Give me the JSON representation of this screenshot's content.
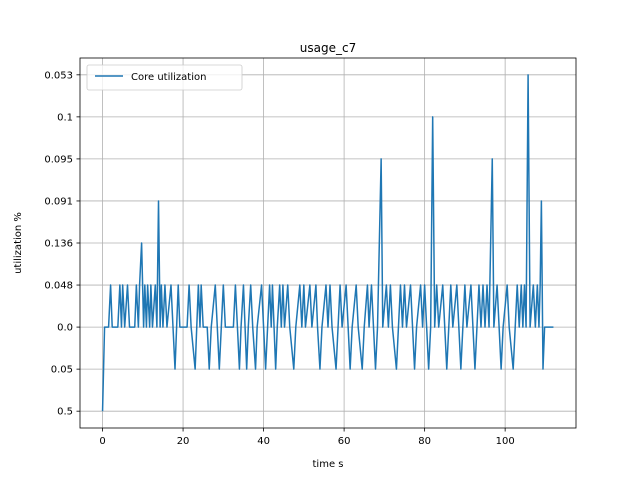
{
  "chart_data": {
    "type": "line",
    "title": "usage_c7",
    "xlabel": "time s",
    "ylabel": "utilization %",
    "xlim": [
      -5.6,
      117.6
    ],
    "x_ticks": [
      0,
      20,
      40,
      60,
      80,
      100
    ],
    "y_categories": [
      "0.5",
      "0.05",
      "0.0",
      "0.048",
      "0.136",
      "0.091",
      "0.095",
      "0.1",
      "0.053"
    ],
    "ylim": [
      -0.4,
      8.4
    ],
    "grid": true,
    "legend_position": "top-left",
    "colors": {
      "series": "#1f77b4",
      "grid": "#b0b0b0"
    },
    "series": [
      {
        "name": "Core utilization",
        "y_axis": "categorical",
        "points": [
          [
            0,
            "0.5"
          ],
          [
            0.5,
            "0.0"
          ],
          [
            1.5,
            "0.0"
          ],
          [
            2.0,
            "0.048"
          ],
          [
            2.4,
            "0.0"
          ],
          [
            3.8,
            "0.0"
          ],
          [
            4.3,
            "0.048"
          ],
          [
            4.7,
            "0.0"
          ],
          [
            5.0,
            "0.048"
          ],
          [
            5.5,
            "0.0"
          ],
          [
            6.2,
            "0.048"
          ],
          [
            6.7,
            "0.0"
          ],
          [
            8.0,
            "0.0"
          ],
          [
            8.4,
            "0.048"
          ],
          [
            8.9,
            "0.0"
          ],
          [
            9.2,
            "0.048"
          ],
          [
            9.7,
            "0.136"
          ],
          [
            10.2,
            "0.0"
          ],
          [
            10.5,
            "0.048"
          ],
          [
            10.9,
            "0.0"
          ],
          [
            11.2,
            "0.048"
          ],
          [
            11.7,
            "0.0"
          ],
          [
            12.0,
            "0.048"
          ],
          [
            12.4,
            "0.0"
          ],
          [
            13.1,
            "0.048"
          ],
          [
            13.5,
            "0.0"
          ],
          [
            13.9,
            "0.091"
          ],
          [
            14.3,
            "0.0"
          ],
          [
            14.6,
            "0.048"
          ],
          [
            15.0,
            "0.0"
          ],
          [
            15.5,
            "0.048"
          ],
          [
            16.0,
            "0.0"
          ],
          [
            17.0,
            "0.048"
          ],
          [
            17.5,
            "0.0"
          ],
          [
            18.0,
            "0.05"
          ],
          [
            18.4,
            "0.0"
          ],
          [
            18.8,
            "0.048"
          ],
          [
            19.2,
            "0.0"
          ],
          [
            21.0,
            "0.0"
          ],
          [
            21.5,
            "0.048"
          ],
          [
            22.0,
            "0.0"
          ],
          [
            23.0,
            "0.05"
          ],
          [
            23.4,
            "0.0"
          ],
          [
            23.8,
            "0.048"
          ],
          [
            24.2,
            "0.0"
          ],
          [
            24.5,
            "0.048"
          ],
          [
            25.0,
            "0.0"
          ],
          [
            26.0,
            "0.0"
          ],
          [
            26.5,
            "0.05"
          ],
          [
            27.0,
            "0.0"
          ],
          [
            28.0,
            "0.048"
          ],
          [
            28.5,
            "0.0"
          ],
          [
            29.0,
            "0.05"
          ],
          [
            29.5,
            "0.0"
          ],
          [
            30.0,
            "0.048"
          ],
          [
            30.5,
            "0.0"
          ],
          [
            32.5,
            "0.0"
          ],
          [
            33.0,
            "0.048"
          ],
          [
            33.5,
            "0.0"
          ],
          [
            34.0,
            "0.05"
          ],
          [
            34.4,
            "0.0"
          ],
          [
            35.0,
            "0.048"
          ],
          [
            35.4,
            "0.0"
          ],
          [
            35.8,
            "0.05"
          ],
          [
            36.2,
            "0.0"
          ],
          [
            36.8,
            "0.048"
          ],
          [
            37.3,
            "0.0"
          ],
          [
            38.0,
            "0.05"
          ],
          [
            38.4,
            "0.0"
          ],
          [
            39.5,
            "0.048"
          ],
          [
            40.0,
            "0.0"
          ],
          [
            40.5,
            "0.05"
          ],
          [
            41.0,
            "0.0"
          ],
          [
            41.5,
            "0.048"
          ],
          [
            41.9,
            "0.0"
          ],
          [
            42.2,
            "0.048"
          ],
          [
            42.6,
            "0.0"
          ],
          [
            43.0,
            "0.05"
          ],
          [
            43.4,
            "0.0"
          ],
          [
            44.0,
            "0.048"
          ],
          [
            44.4,
            "0.0"
          ],
          [
            44.8,
            "0.048"
          ],
          [
            45.2,
            "0.0"
          ],
          [
            46.0,
            "0.048"
          ],
          [
            46.5,
            "0.0"
          ],
          [
            47.5,
            "0.05"
          ],
          [
            48.0,
            "0.0"
          ],
          [
            49.0,
            "0.048"
          ],
          [
            49.5,
            "0.0"
          ],
          [
            50.0,
            "0.048"
          ],
          [
            50.4,
            "0.0"
          ],
          [
            51.5,
            "0.048"
          ],
          [
            52.0,
            "0.0"
          ],
          [
            53.0,
            "0.048"
          ],
          [
            53.4,
            "0.0"
          ],
          [
            54.0,
            "0.05"
          ],
          [
            54.5,
            "0.0"
          ],
          [
            55.5,
            "0.048"
          ],
          [
            56.0,
            "0.0"
          ],
          [
            56.5,
            "0.048"
          ],
          [
            57.0,
            "0.0"
          ],
          [
            58.0,
            "0.05"
          ],
          [
            58.5,
            "0.0"
          ],
          [
            59.0,
            "0.048"
          ],
          [
            59.5,
            "0.0"
          ],
          [
            60.5,
            "0.048"
          ],
          [
            61.0,
            "0.0"
          ],
          [
            61.5,
            "0.05"
          ],
          [
            62.0,
            "0.0"
          ],
          [
            63.0,
            "0.048"
          ],
          [
            63.5,
            "0.0"
          ],
          [
            64.5,
            "0.05"
          ],
          [
            65.0,
            "0.0"
          ],
          [
            65.8,
            "0.048"
          ],
          [
            66.2,
            "0.0"
          ],
          [
            66.8,
            "0.048"
          ],
          [
            67.3,
            "0.0"
          ],
          [
            67.8,
            "0.05"
          ],
          [
            68.3,
            "0.0"
          ],
          [
            69.2,
            "0.095"
          ],
          [
            69.6,
            "0.0"
          ],
          [
            70.5,
            "0.048"
          ],
          [
            71.0,
            "0.0"
          ],
          [
            71.5,
            "0.048"
          ],
          [
            72.0,
            "0.0"
          ],
          [
            73.0,
            "0.05"
          ],
          [
            73.5,
            "0.0"
          ],
          [
            74.0,
            "0.048"
          ],
          [
            74.5,
            "0.0"
          ],
          [
            75.0,
            "0.048"
          ],
          [
            75.5,
            "0.0"
          ],
          [
            76.5,
            "0.048"
          ],
          [
            77.0,
            "0.0"
          ],
          [
            77.5,
            "0.05"
          ],
          [
            78.0,
            "0.0"
          ],
          [
            79.0,
            "0.048"
          ],
          [
            79.5,
            "0.0"
          ],
          [
            80.0,
            "0.048"
          ],
          [
            80.5,
            "0.0"
          ],
          [
            81.0,
            "0.05"
          ],
          [
            81.5,
            "0.0"
          ],
          [
            82.0,
            "0.1"
          ],
          [
            82.5,
            "0.0"
          ],
          [
            83.0,
            "0.048"
          ],
          [
            83.5,
            "0.0"
          ],
          [
            84.5,
            "0.048"
          ],
          [
            85.0,
            "0.0"
          ],
          [
            85.5,
            "0.05"
          ],
          [
            86.0,
            "0.0"
          ],
          [
            86.5,
            "0.048"
          ],
          [
            87.0,
            "0.0"
          ],
          [
            88.0,
            "0.048"
          ],
          [
            88.5,
            "0.0"
          ],
          [
            89.0,
            "0.05"
          ],
          [
            89.5,
            "0.0"
          ],
          [
            90.0,
            "0.048"
          ],
          [
            90.5,
            "0.0"
          ],
          [
            91.5,
            "0.048"
          ],
          [
            92.0,
            "0.0"
          ],
          [
            92.5,
            "0.05"
          ],
          [
            93.0,
            "0.0"
          ],
          [
            93.5,
            "0.048"
          ],
          [
            94.0,
            "0.0"
          ],
          [
            94.5,
            "0.048"
          ],
          [
            95.0,
            "0.0"
          ],
          [
            95.5,
            "0.048"
          ],
          [
            96.0,
            "0.0"
          ],
          [
            96.8,
            "0.095"
          ],
          [
            97.2,
            "0.0"
          ],
          [
            98.0,
            "0.048"
          ],
          [
            98.5,
            "0.0"
          ],
          [
            99.0,
            "0.05"
          ],
          [
            99.5,
            "0.0"
          ],
          [
            100.5,
            "0.048"
          ],
          [
            101.0,
            "0.0"
          ],
          [
            102.0,
            "0.05"
          ],
          [
            102.5,
            "0.0"
          ],
          [
            103.0,
            "0.048"
          ],
          [
            103.5,
            "0.0"
          ],
          [
            104.0,
            "0.048"
          ],
          [
            104.4,
            "0.0"
          ],
          [
            104.8,
            "0.048"
          ],
          [
            105.2,
            "0.0"
          ],
          [
            105.7,
            "0.053"
          ],
          [
            106.2,
            "0.0"
          ],
          [
            107.0,
            "0.048"
          ],
          [
            107.5,
            "0.0"
          ],
          [
            108.0,
            "0.048"
          ],
          [
            108.4,
            "0.0"
          ],
          [
            108.7,
            "0.048"
          ],
          [
            109.0,
            "0.091"
          ],
          [
            109.4,
            "0.05"
          ],
          [
            109.8,
            "0.0"
          ],
          [
            112.0,
            "0.0"
          ]
        ]
      }
    ]
  }
}
